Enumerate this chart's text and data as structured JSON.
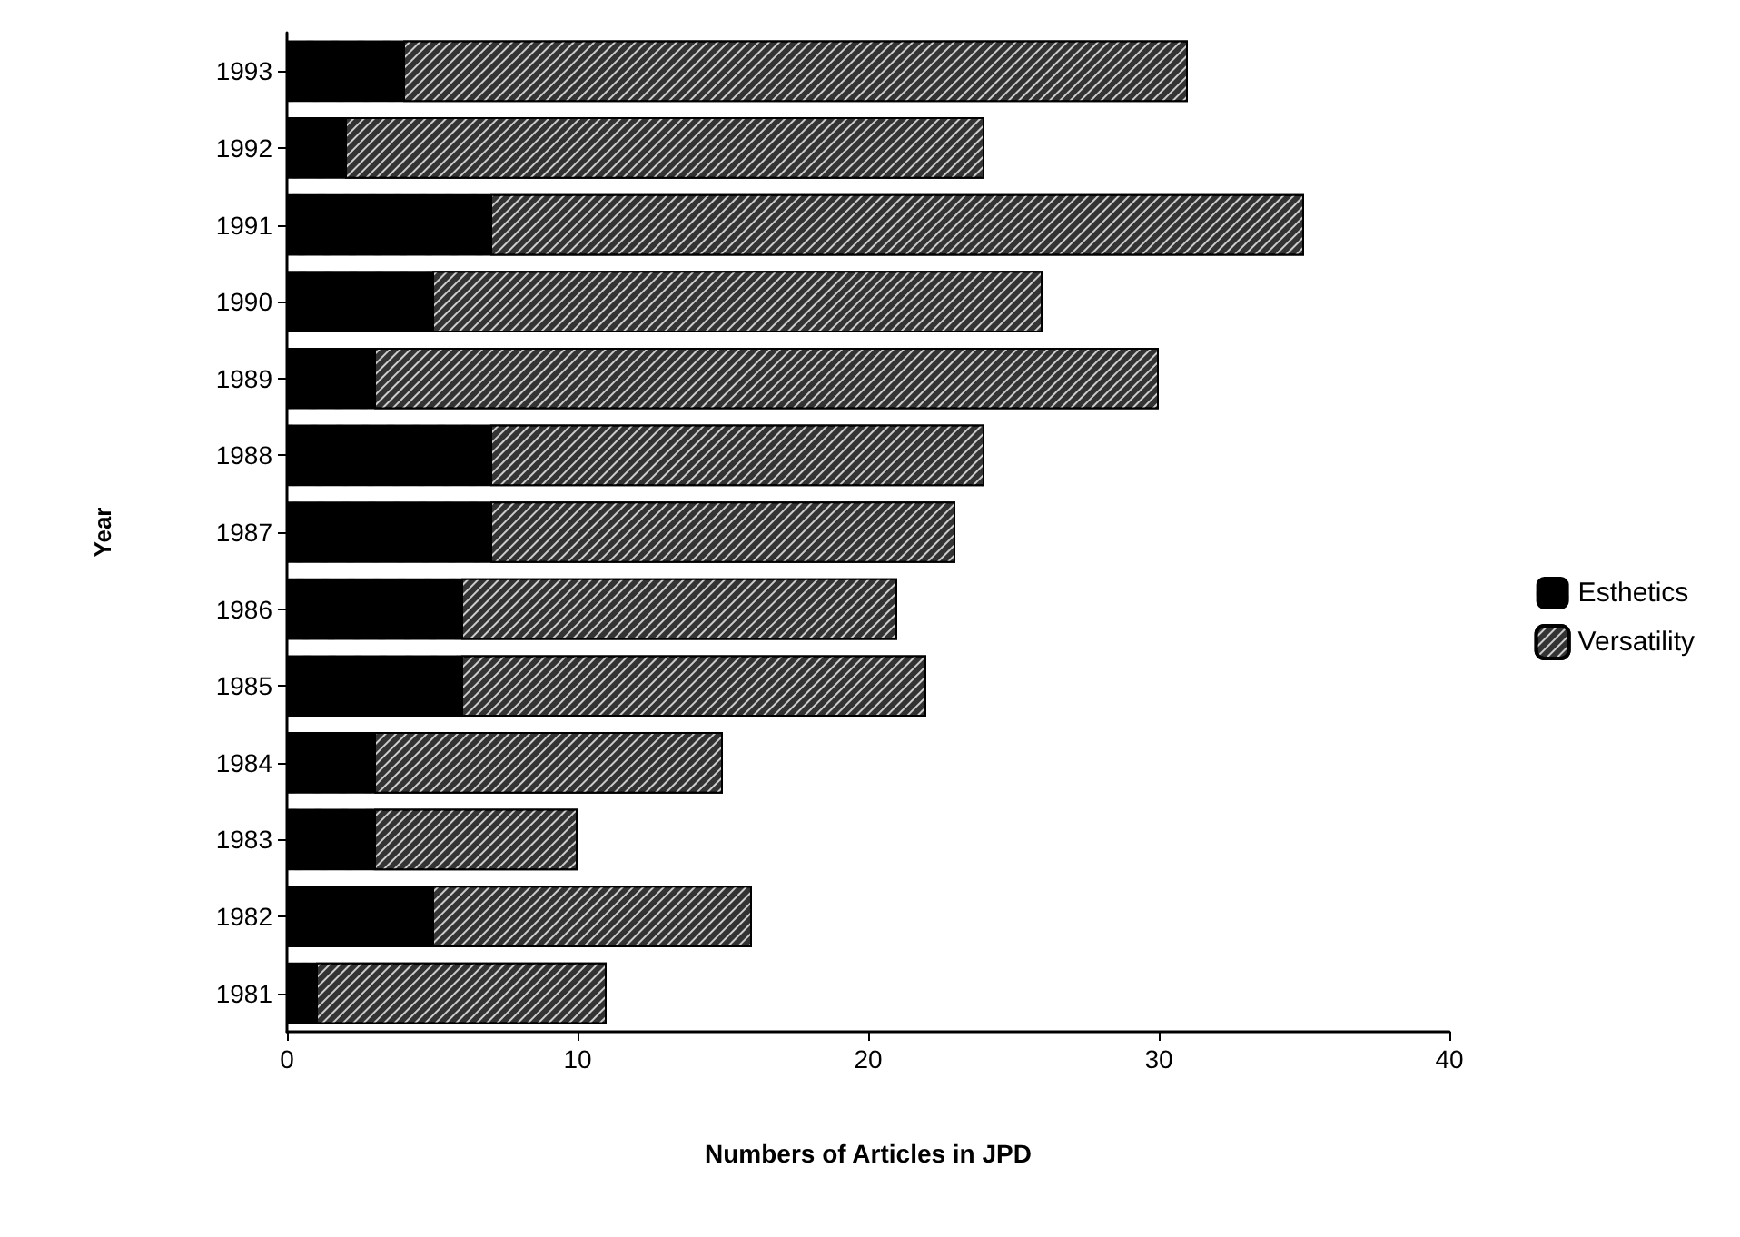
{
  "chart_data": {
    "type": "bar",
    "orientation": "horizontal",
    "stacked": true,
    "xlabel": "Numbers of Articles in JPD",
    "ylabel": "Year",
    "categories": [
      "1993",
      "1992",
      "1991",
      "1990",
      "1989",
      "1988",
      "1987",
      "1986",
      "1985",
      "1984",
      "1983",
      "1982",
      "1981"
    ],
    "series": [
      {
        "name": "Esthetics",
        "color": "#000000",
        "values": [
          4,
          2,
          7,
          5,
          3,
          7,
          7,
          6,
          6,
          3,
          3,
          5,
          1
        ]
      },
      {
        "name": "Versatility",
        "color": "#333333",
        "values": [
          27,
          22,
          28,
          21,
          27,
          17,
          16,
          15,
          16,
          12,
          7,
          11,
          10
        ]
      }
    ],
    "xlim": [
      0,
      40
    ],
    "xticks": [
      0,
      10,
      20,
      30,
      40
    ],
    "grid": false,
    "legend": "right"
  }
}
